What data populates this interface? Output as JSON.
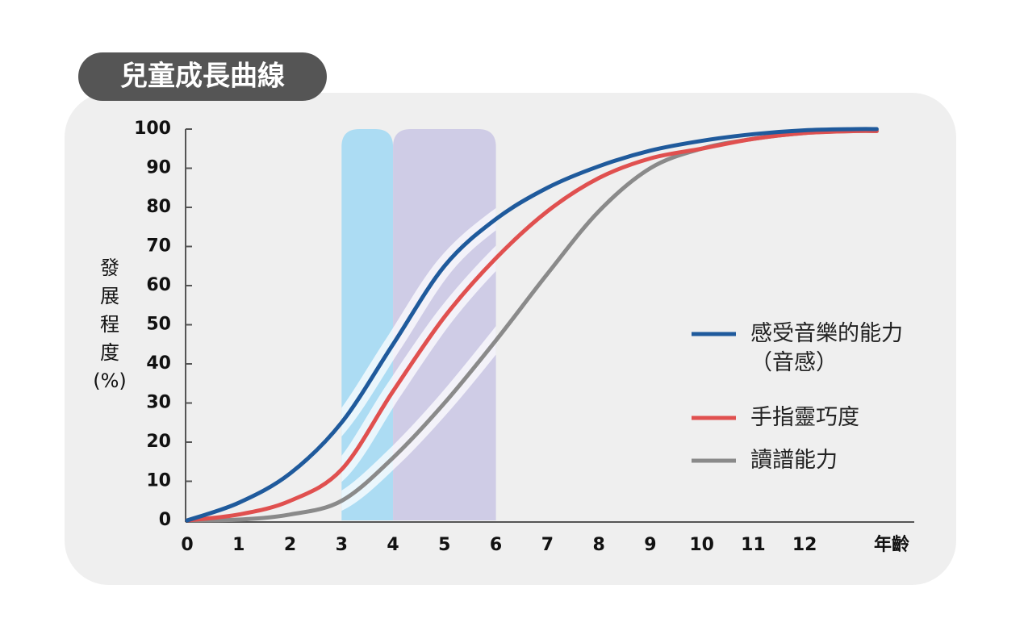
{
  "title": "兒童成長曲線",
  "chart_data": {
    "type": "line",
    "x_label": "年齡",
    "y_label": [
      "發",
      "展",
      "程",
      "度",
      "(%)"
    ],
    "x": [
      0,
      1,
      2,
      3,
      4,
      5,
      6,
      7,
      8,
      9,
      10,
      11,
      12,
      13,
      13.4
    ],
    "series": [
      {
        "name": "感受音樂的能力（音感）",
        "color": "#1f5a9c",
        "values": [
          0,
          4.5,
          12,
          25,
          45,
          65,
          77,
          85,
          90.5,
          94.5,
          97,
          98.7,
          99.7,
          100,
          100
        ]
      },
      {
        "name": "手指靈巧度",
        "color": "#e0504f",
        "values": [
          0,
          1.5,
          5,
          13,
          33,
          52,
          67,
          79,
          87.5,
          92.5,
          95,
          97.5,
          99,
          99.5,
          99.5
        ]
      },
      {
        "name": "讀譜能力",
        "color": "#8a8a8a",
        "values": [
          0,
          0.2,
          1.5,
          5,
          16,
          30,
          46,
          63,
          79,
          90,
          95,
          97.5,
          99,
          99.5,
          99.5
        ]
      }
    ],
    "bands": [
      {
        "x": [
          3,
          4
        ],
        "color": "#acdcf3"
      },
      {
        "x": [
          4,
          6
        ],
        "color": "#cfcce6"
      }
    ],
    "xlim": [
      0,
      14.13
    ],
    "ylim": [
      0,
      100
    ],
    "xticks": [
      0,
      1,
      2,
      3,
      4,
      5,
      6,
      7,
      8,
      9,
      10,
      11,
      12
    ],
    "yticks": [
      0,
      10,
      20,
      30,
      40,
      50,
      60,
      70,
      80,
      90,
      100
    ],
    "legend": "right"
  }
}
